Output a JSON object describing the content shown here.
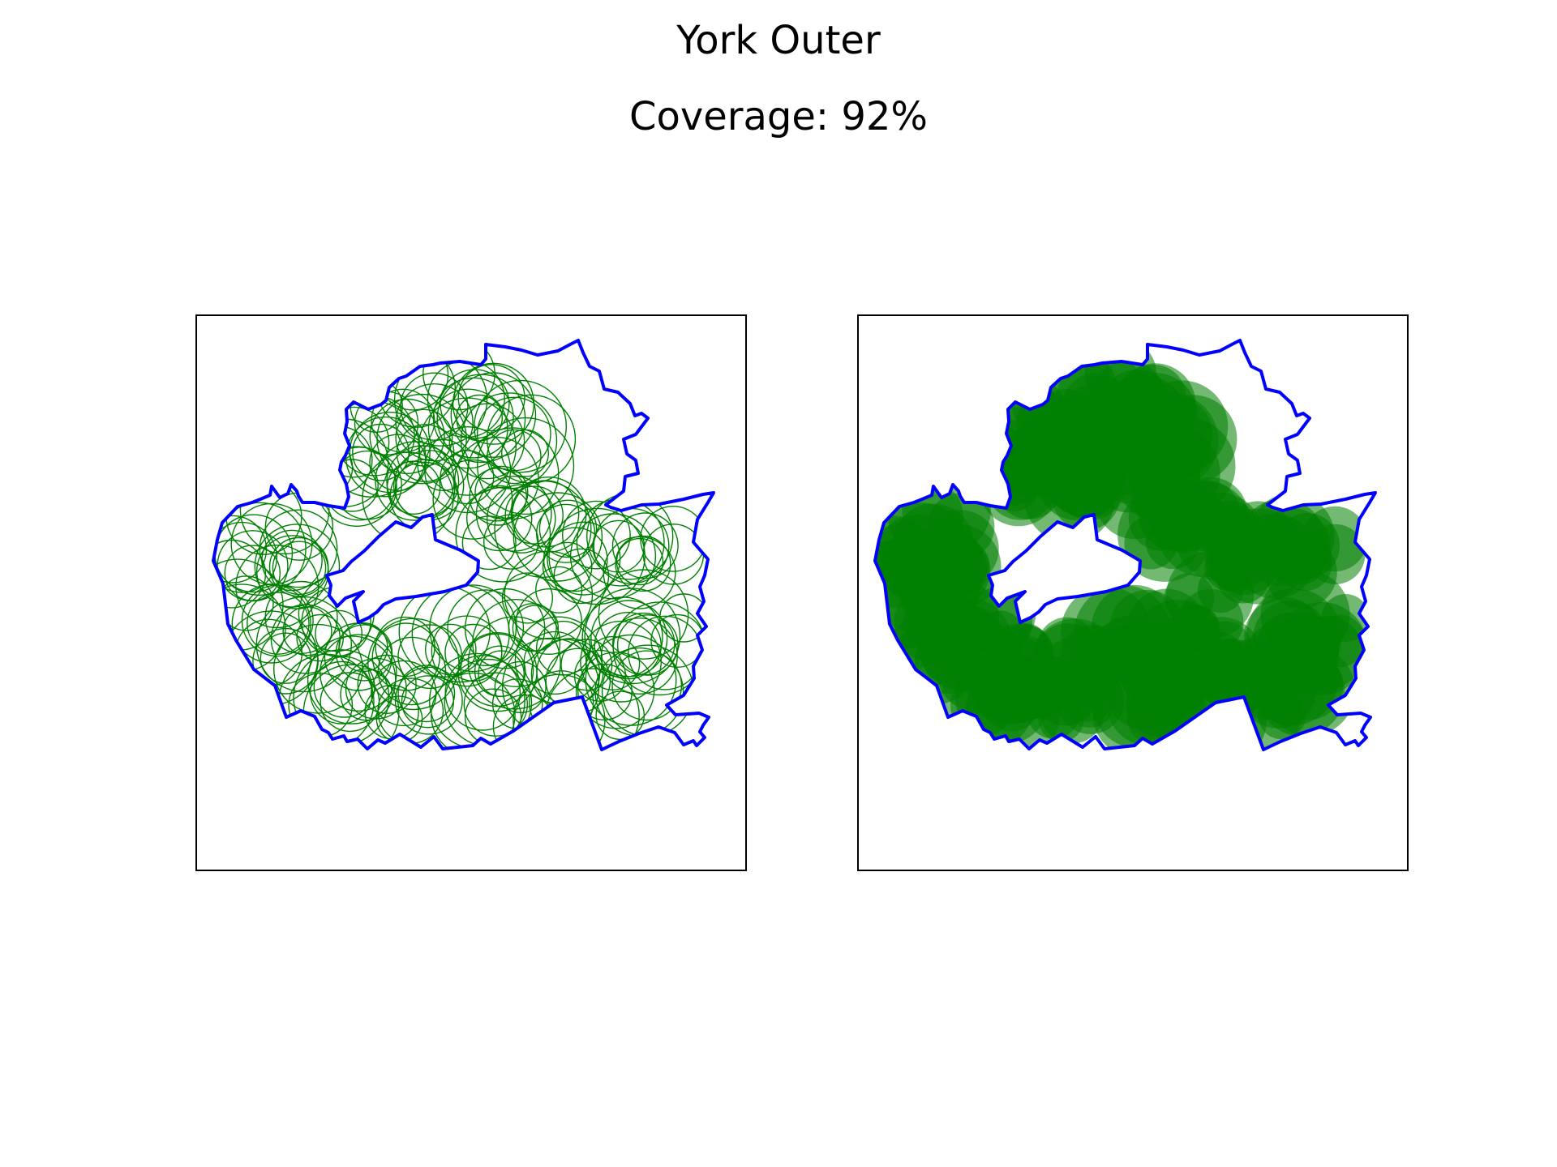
{
  "figure": {
    "title": "York Outer",
    "subtitle": "Coverage: 92%"
  },
  "colors": {
    "boundary": "#0000ff",
    "coverage": "#008000",
    "frame": "#000000",
    "background": "#ffffff"
  },
  "panels": [
    {
      "mode": "outline"
    },
    {
      "mode": "filled"
    }
  ]
}
